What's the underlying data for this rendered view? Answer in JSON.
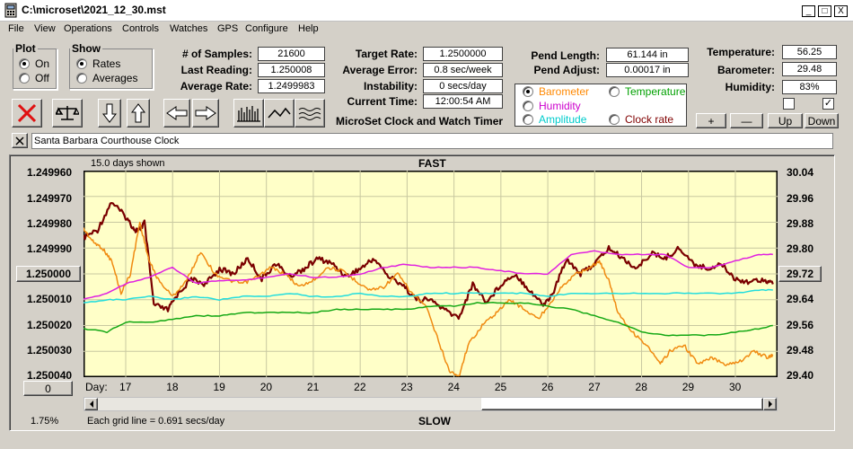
{
  "window": {
    "title": "C:\\microset\\2021_12_30.mst",
    "min": "_",
    "max": "□",
    "close": "X"
  },
  "menu": [
    "File",
    "View",
    "Operations",
    "Controls",
    "Watches",
    "GPS",
    "Configure",
    "Help"
  ],
  "plot": {
    "legend": "Plot",
    "on": "On",
    "off": "Off",
    "selected": "On"
  },
  "show": {
    "legend": "Show",
    "rates": "Rates",
    "averages": "Averages",
    "selected": "Rates"
  },
  "stats": {
    "samples_label": "# of Samples:",
    "samples": "21600",
    "last_label": "Last Reading:",
    "last": "1.250008",
    "avg_label": "Average Rate:",
    "avg": "1.2499983"
  },
  "targets": {
    "target_label": "Target Rate:",
    "target": "1.2500000",
    "error_label": "Average Error:",
    "error": "0.8 sec/week",
    "instab_label": "Instability:",
    "instab": "0 secs/day",
    "time_label": "Current Time:",
    "time": "12:00:54 AM"
  },
  "pend": {
    "length_label": "Pend Length:",
    "length": "61.144 in",
    "adjust_label": "Pend Adjust:",
    "adjust": "0.00017 in"
  },
  "env": {
    "temp_label": "Temperature:",
    "temp": "56.25",
    "baro_label": "Barometer:",
    "baro": "29.48",
    "hum_label": "Humidity:",
    "hum": "83%",
    "check2": "✓"
  },
  "app_title": "MicroSet Clock and Watch Timer",
  "sensor_select": {
    "selected": "Barometer",
    "options": [
      {
        "label": "Barometer",
        "color": "#ff8800"
      },
      {
        "label": "Temperature",
        "color": "#00a000"
      },
      {
        "label": "Humidity",
        "color": "#cc00cc"
      },
      {
        "label": "Amplitude",
        "color": "#00cccc"
      },
      {
        "label": "Clock rate",
        "color": "#800000"
      }
    ]
  },
  "scale_buttons": {
    "plus": "+",
    "minus": "—",
    "up": "Up",
    "down": "Down"
  },
  "clock_name": "Santa Barbara Courthouse Clock",
  "chart_top": {
    "days_shown": "15.0 days shown",
    "fast": "FAST"
  },
  "chart_bottom": {
    "grid_note": "Each grid line = 0.691 secs/day",
    "slow": "SLOW",
    "percent": "1.75%",
    "zero_button": "0",
    "day_label": "Day:"
  },
  "left_button_value": "1.250000",
  "right_button_value": "29.72",
  "chart_data": {
    "type": "line",
    "x_label": "Day",
    "x_ticks": [
      17,
      18,
      19,
      20,
      21,
      22,
      23,
      24,
      25,
      26,
      27,
      28,
      29,
      30
    ],
    "xlim": [
      16.1,
      30.9
    ],
    "left_axis": {
      "ticks": [
        "1.249960",
        "1.249970",
        "1.249980",
        "1.249990",
        "1.250000",
        "1.250010",
        "1.250020",
        "1.250030",
        "1.250040"
      ],
      "ylim": [
        1.25004,
        1.24996
      ]
    },
    "right_axis": {
      "ticks": [
        "30.04",
        "29.96",
        "29.88",
        "29.80",
        "29.72",
        "29.64",
        "29.56",
        "29.48",
        "29.40"
      ],
      "ylim": [
        29.4,
        30.04
      ]
    },
    "series": [
      {
        "name": "Clock rate",
        "color": "#7a0000",
        "axis": "left",
        "x": [
          16.1,
          16.4,
          16.7,
          17.0,
          17.2,
          17.3,
          17.4,
          17.6,
          17.9,
          18.1,
          18.4,
          18.7,
          19.0,
          19.3,
          19.6,
          19.9,
          20.2,
          20.5,
          20.8,
          21.1,
          21.4,
          21.7,
          22.0,
          22.3,
          22.6,
          22.9,
          23.2,
          23.5,
          23.8,
          24.1,
          24.4,
          24.7,
          25.0,
          25.3,
          25.6,
          25.9,
          26.1,
          26.4,
          26.7,
          27.0,
          27.3,
          27.6,
          27.9,
          28.2,
          28.5,
          28.8,
          29.1,
          29.4,
          29.7,
          30.0,
          30.3,
          30.6,
          30.8
        ],
        "y": [
          1.249986,
          1.249983,
          1.249972,
          1.249978,
          1.249983,
          1.249983,
          1.24998,
          1.250012,
          1.250014,
          1.250008,
          1.250002,
          1.250004,
          1.249998,
          1.25,
          1.249994,
          1.250002,
          1.249996,
          1.250001,
          1.249998,
          1.249994,
          1.249996,
          1.250001,
          1.249998,
          1.249994,
          1.250001,
          1.250004,
          1.25001,
          1.25001,
          1.250014,
          1.250017,
          1.250004,
          1.250011,
          1.250004,
          1.25,
          1.250006,
          1.250012,
          1.250008,
          1.249994,
          1.25,
          1.249996,
          1.24999,
          1.249994,
          1.249998,
          1.249992,
          1.249994,
          1.24999,
          1.249996,
          1.249998,
          1.249996,
          1.250002,
          1.250003,
          1.250002,
          1.250004
        ]
      },
      {
        "name": "Barometer",
        "color": "#f08a10",
        "axis": "right",
        "x": [
          16.1,
          16.3,
          16.5,
          16.7,
          16.9,
          17.1,
          17.3,
          17.5,
          17.7,
          18.0,
          18.3,
          18.6,
          18.9,
          19.2,
          19.5,
          19.8,
          20.1,
          20.4,
          20.7,
          21.0,
          21.3,
          21.6,
          21.9,
          22.2,
          22.5,
          22.8,
          23.1,
          23.4,
          23.7,
          23.9,
          24.1,
          24.3,
          24.6,
          24.9,
          25.2,
          25.5,
          25.8,
          26.0,
          26.3,
          26.6,
          26.9,
          27.1,
          27.3,
          27.5,
          27.8,
          28.1,
          28.4,
          28.6,
          28.9,
          29.2,
          29.5,
          29.8,
          30.1,
          30.4,
          30.7,
          30.8
        ],
        "y": [
          29.86,
          29.82,
          29.8,
          29.76,
          29.66,
          29.72,
          29.88,
          29.76,
          29.7,
          29.65,
          29.7,
          29.79,
          29.72,
          29.7,
          29.69,
          29.71,
          29.74,
          29.72,
          29.68,
          29.7,
          29.74,
          29.73,
          29.7,
          29.67,
          29.68,
          29.72,
          29.66,
          29.62,
          29.5,
          29.42,
          29.4,
          29.5,
          29.56,
          29.6,
          29.64,
          29.61,
          29.58,
          29.62,
          29.68,
          29.72,
          29.74,
          29.76,
          29.7,
          29.6,
          29.54,
          29.5,
          29.44,
          29.48,
          29.5,
          29.44,
          29.46,
          29.44,
          29.45,
          29.48,
          29.46,
          29.47
        ]
      },
      {
        "name": "Humidity",
        "color": "#e020e0",
        "axis": "right",
        "x": [
          16.1,
          16.6,
          17.0,
          17.5,
          18.0,
          18.5,
          19.0,
          19.5,
          20.0,
          20.5,
          21.0,
          21.5,
          22.0,
          22.5,
          23.0,
          23.5,
          24.0,
          24.5,
          25.0,
          25.5,
          26.0,
          26.5,
          27.0,
          27.5,
          28.0,
          28.5,
          29.0,
          29.5,
          30.0,
          30.5,
          30.8
        ],
        "y": [
          29.64,
          29.66,
          29.69,
          29.71,
          29.74,
          29.69,
          29.7,
          29.7,
          29.71,
          29.72,
          29.71,
          29.71,
          29.72,
          29.74,
          29.75,
          29.74,
          29.74,
          29.74,
          29.73,
          29.72,
          29.72,
          29.78,
          29.79,
          29.78,
          29.78,
          29.78,
          29.74,
          29.74,
          29.76,
          29.78,
          29.78
        ]
      },
      {
        "name": "Amplitude",
        "color": "#22dddd",
        "axis": "right",
        "x": [
          16.1,
          16.6,
          17.0,
          17.5,
          18.0,
          18.5,
          19.0,
          19.5,
          20.0,
          20.5,
          21.0,
          21.5,
          22.0,
          22.5,
          23.0,
          23.5,
          24.0,
          24.5,
          25.0,
          25.5,
          26.0,
          26.5,
          27.0,
          27.5,
          28.0,
          28.5,
          29.0,
          29.5,
          30.0,
          30.5,
          30.8
        ],
        "y": [
          29.63,
          29.64,
          29.64,
          29.65,
          29.64,
          29.65,
          29.64,
          29.65,
          29.65,
          29.66,
          29.65,
          29.65,
          29.66,
          29.65,
          29.65,
          29.66,
          29.66,
          29.66,
          29.66,
          29.66,
          29.65,
          29.66,
          29.66,
          29.66,
          29.66,
          29.66,
          29.66,
          29.66,
          29.66,
          29.67,
          29.67
        ]
      },
      {
        "name": "Temperature",
        "color": "#14a814",
        "axis": "right",
        "x": [
          16.1,
          16.6,
          17.0,
          17.5,
          18.0,
          18.5,
          19.0,
          19.5,
          20.0,
          20.5,
          21.0,
          21.5,
          22.0,
          22.5,
          23.0,
          23.5,
          24.0,
          24.5,
          25.0,
          25.5,
          26.0,
          26.5,
          27.0,
          27.5,
          28.0,
          28.5,
          29.0,
          29.5,
          30.0,
          30.5,
          30.8
        ],
        "y": [
          29.55,
          29.54,
          29.57,
          29.57,
          29.58,
          29.59,
          29.59,
          29.6,
          29.6,
          29.6,
          29.6,
          29.61,
          29.61,
          29.61,
          29.61,
          29.62,
          29.62,
          29.63,
          29.63,
          29.63,
          29.62,
          29.61,
          29.59,
          29.57,
          29.54,
          29.53,
          29.53,
          29.53,
          29.54,
          29.55,
          29.56
        ]
      }
    ]
  }
}
